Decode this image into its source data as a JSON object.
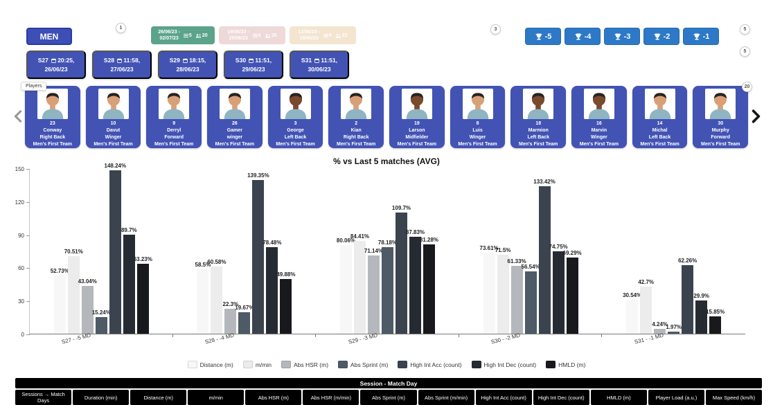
{
  "colors": {
    "primary_blue": "#2d79c7",
    "indigo": "#4353b4",
    "selected_range_green": "#5ca38b",
    "range_pink": "#eed9d9",
    "range_tan": "#f3e5d0"
  },
  "topbar": {
    "men_label": "MEN",
    "badges": {
      "b1": "1",
      "b3": "3",
      "b5a": "5",
      "b5b": "5"
    },
    "date_ranges": [
      {
        "line1": "26/06/23 -",
        "line2": "02/07/23",
        "sessions": "5",
        "players": "20",
        "style": "date-green"
      },
      {
        "line1": "19/06/23 -",
        "line2": "25/06/23",
        "sessions": "6",
        "players": "26",
        "style": "date-pink"
      },
      {
        "line1": "12/06/23 -",
        "line2": "18/06/23",
        "sessions": "9",
        "players": "22",
        "style": "date-tan"
      }
    ],
    "match_day_buttons": [
      "-5",
      "-4",
      "-3",
      "-2",
      "-1"
    ]
  },
  "sessions": [
    {
      "code": "S27",
      "time": "20:25,",
      "date": "26/06/23"
    },
    {
      "code": "S28",
      "time": "11:58,",
      "date": "27/06/23"
    },
    {
      "code": "S29",
      "time": "18:15,",
      "date": "28/06/23"
    },
    {
      "code": "S30",
      "time": "11:51,",
      "date": "29/06/23"
    },
    {
      "code": "S31",
      "time": "11:51,",
      "date": "30/06/23"
    }
  ],
  "players": {
    "tooltip": "Players",
    "count_badge": "20",
    "cards": [
      {
        "number": "23",
        "name": "Conway",
        "position": "Right Back",
        "team": "Men's First Team",
        "tone": "light"
      },
      {
        "number": "10",
        "name": "Davut",
        "position": "Winger",
        "team": "Men's First Team",
        "tone": "light"
      },
      {
        "number": "9",
        "name": "Derryl",
        "position": "Forward",
        "team": "Men's First Team",
        "tone": "light"
      },
      {
        "number": "26",
        "name": "Gamer",
        "position": "winger",
        "team": "Men's First Team",
        "tone": "light"
      },
      {
        "number": "3",
        "name": "George",
        "position": "Left Back",
        "team": "Men's First Team",
        "tone": "dark"
      },
      {
        "number": "2",
        "name": "Kian",
        "position": "Right Back",
        "team": "Men's First Team",
        "tone": "light"
      },
      {
        "number": "19",
        "name": "Larson",
        "position": "Midfielder",
        "team": "Men's First Team",
        "tone": "dark"
      },
      {
        "number": "8",
        "name": "Luis",
        "position": "Winger",
        "team": "Men's First Team",
        "tone": "light"
      },
      {
        "number": "18",
        "name": "Marmion",
        "position": "Left Back",
        "team": "Men's First Team",
        "tone": "dark"
      },
      {
        "number": "16",
        "name": "Marvin",
        "position": "Winger",
        "team": "Men's First Team",
        "tone": "dark"
      },
      {
        "number": "14",
        "name": "Michal",
        "position": "Left Back",
        "team": "Men's First Team",
        "tone": "light"
      },
      {
        "number": "30",
        "name": "Murphy",
        "position": "Forward",
        "team": "Men's First Team",
        "tone": "light"
      }
    ]
  },
  "chart_data": {
    "type": "bar",
    "title": "% vs Last 5 matches (AVG)",
    "categories": [
      "S27 - -5 MD",
      "S28 - -4 MD",
      "S29 - -3 MD",
      "S30 - -2 MD",
      "S31 - -1 MD"
    ],
    "ylim": [
      0,
      150
    ],
    "yticks": [
      0,
      30,
      60,
      90,
      120,
      150
    ],
    "value_suffix": "%",
    "legend_position": "bottom",
    "grid": false,
    "series": [
      {
        "name": "Distance (m)",
        "color": "#f7f7f7",
        "values": [
          52.73,
          58.5,
          80.06,
          73.61,
          30.54
        ]
      },
      {
        "name": "m/min",
        "color": "#ececec",
        "values": [
          70.51,
          60.58,
          84.41,
          71.5,
          42.7
        ]
      },
      {
        "name": "Abs HSR (m)",
        "color": "#b4b8bc",
        "values": [
          43.04,
          22.3,
          71.14,
          61.33,
          4.24
        ]
      },
      {
        "name": "Abs Sprint (m)",
        "color": "#4e5a66",
        "values": [
          15.24,
          19.67,
          78.18,
          56.54,
          1.97
        ]
      },
      {
        "name": "High Int Acc (count)",
        "color": "#3b434f",
        "values": [
          148.24,
          139.35,
          109.7,
          133.42,
          62.26
        ]
      },
      {
        "name": "High Int Dec (count)",
        "color": "#262b33",
        "values": [
          89.7,
          78.48,
          87.83,
          74.75,
          29.9
        ]
      },
      {
        "name": "HMLD (m)",
        "color": "#17191d",
        "values": [
          63.23,
          49.88,
          81.28,
          69.29,
          15.85
        ]
      }
    ]
  },
  "footer": {
    "section_title": "Session - Match Day",
    "columns": [
      "Sessions → Match Days",
      "Duration (min)",
      "Distance (m)",
      "m/min",
      "Abs HSR (m)",
      "Abs HSR (m/min)",
      "Abs Sprint (m)",
      "Abs Sprint (m/min)",
      "High Int Acc (count)",
      "High Int Dec (count)",
      "HMLD (m)",
      "Player Load (a.u.)",
      "Max Speed (km/h)"
    ]
  }
}
